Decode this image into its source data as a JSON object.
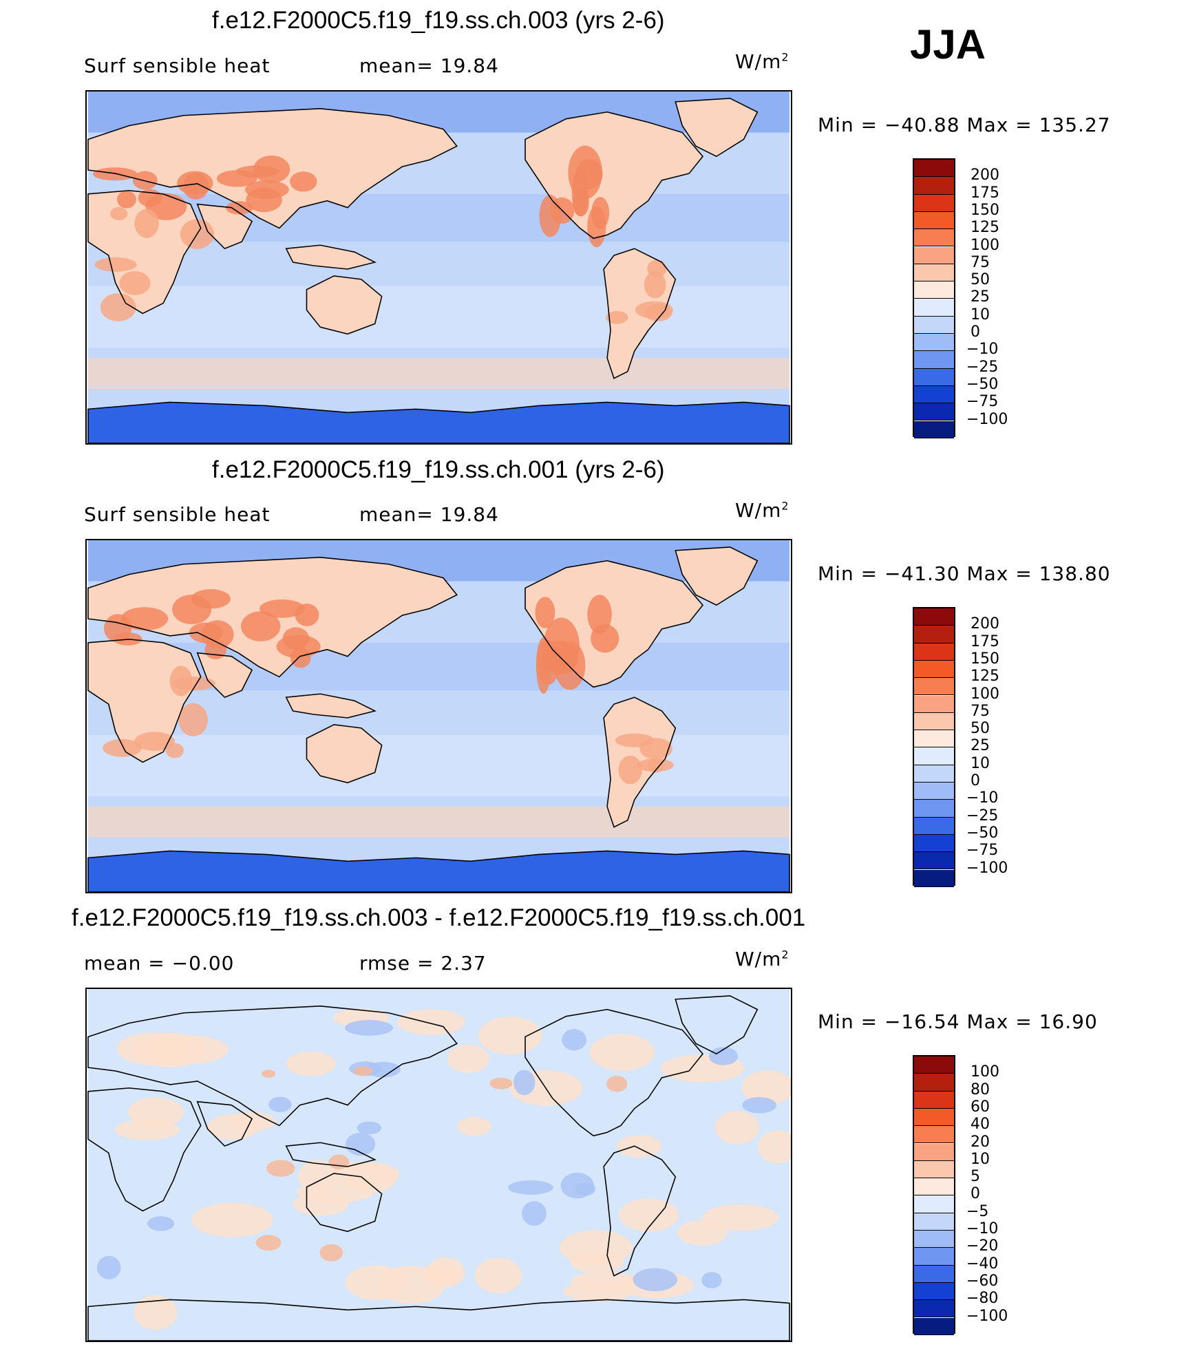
{
  "season": "JJA",
  "colors": {
    "ocean_blue": "#c4d8fa",
    "ice_blue": "#2f63e6",
    "land_warm": "#fbd5bf",
    "land_hot": "#f2875f",
    "diff_bg": "#d6e6fb",
    "diff_warm": "#fde1cc"
  },
  "chart_data": [
    {
      "type": "heatmap",
      "title": "f.e12.F2000C5.f19_f19.ss.ch.003 (yrs 2-6)",
      "left_label": "Surf  sensible  heat",
      "stat_label": "mean=   19.84",
      "units": "W/m",
      "units_exp": "2",
      "min_max": "Min  =  −40.88  Max  =  135.27",
      "min": -40.88,
      "max": 135.27,
      "mean": 19.84,
      "colorbar_labels": [
        "200",
        "175",
        "150",
        "125",
        "100",
        "75",
        "50",
        "25",
        "10",
        "0",
        "−10",
        "−25",
        "−50",
        "−75",
        "−100"
      ],
      "colorbar_colors": [
        "#8c0a0a",
        "#b4200e",
        "#dc3417",
        "#f45a28",
        "#f87d50",
        "#f9a383",
        "#fbc8ae",
        "#fde9dd",
        "#e0ecfd",
        "#c2d7fa",
        "#9fbcf6",
        "#6f96f0",
        "#3b6ae6",
        "#1440d4",
        "#0a28b0",
        "#061c80"
      ]
    },
    {
      "type": "heatmap",
      "title": "f.e12.F2000C5.f19_f19.ss.ch.001 (yrs 2-6)",
      "left_label": "Surf  sensible  heat",
      "stat_label": "mean=   19.84",
      "units": "W/m",
      "units_exp": "2",
      "min_max": "Min  =  −41.30  Max  =  138.80",
      "min": -41.3,
      "max": 138.8,
      "mean": 19.84,
      "colorbar_labels": [
        "200",
        "175",
        "150",
        "125",
        "100",
        "75",
        "50",
        "25",
        "10",
        "0",
        "−10",
        "−25",
        "−50",
        "−75",
        "−100"
      ],
      "colorbar_colors": [
        "#8c0a0a",
        "#b4200e",
        "#dc3417",
        "#f45a28",
        "#f87d50",
        "#f9a383",
        "#fbc8ae",
        "#fde9dd",
        "#e0ecfd",
        "#c2d7fa",
        "#9fbcf6",
        "#6f96f0",
        "#3b6ae6",
        "#1440d4",
        "#0a28b0",
        "#061c80"
      ]
    },
    {
      "type": "heatmap",
      "title": "f.e12.F2000C5.f19_f19.ss.ch.003 - f.e12.F2000C5.f19_f19.ss.ch.001",
      "left_label": "mean  =   −0.00",
      "stat_label": "rmse  =     2.37",
      "units": "W/m",
      "units_exp": "2",
      "min_max": "Min  =  −16.54  Max  =    16.90",
      "min": -16.54,
      "max": 16.9,
      "mean": -0.0,
      "rmse": 2.37,
      "colorbar_labels": [
        "100",
        "80",
        "60",
        "40",
        "20",
        "10",
        "5",
        "0",
        "−5",
        "−10",
        "−20",
        "−40",
        "−60",
        "−80",
        "−100"
      ],
      "colorbar_colors": [
        "#8c0a0a",
        "#b4200e",
        "#dc3417",
        "#f45a28",
        "#f87d50",
        "#f9a383",
        "#fbc8ae",
        "#fde9dd",
        "#e0ecfd",
        "#c2d7fa",
        "#9fbcf6",
        "#6f96f0",
        "#3b6ae6",
        "#1440d4",
        "#0a28b0",
        "#061c80"
      ]
    }
  ]
}
